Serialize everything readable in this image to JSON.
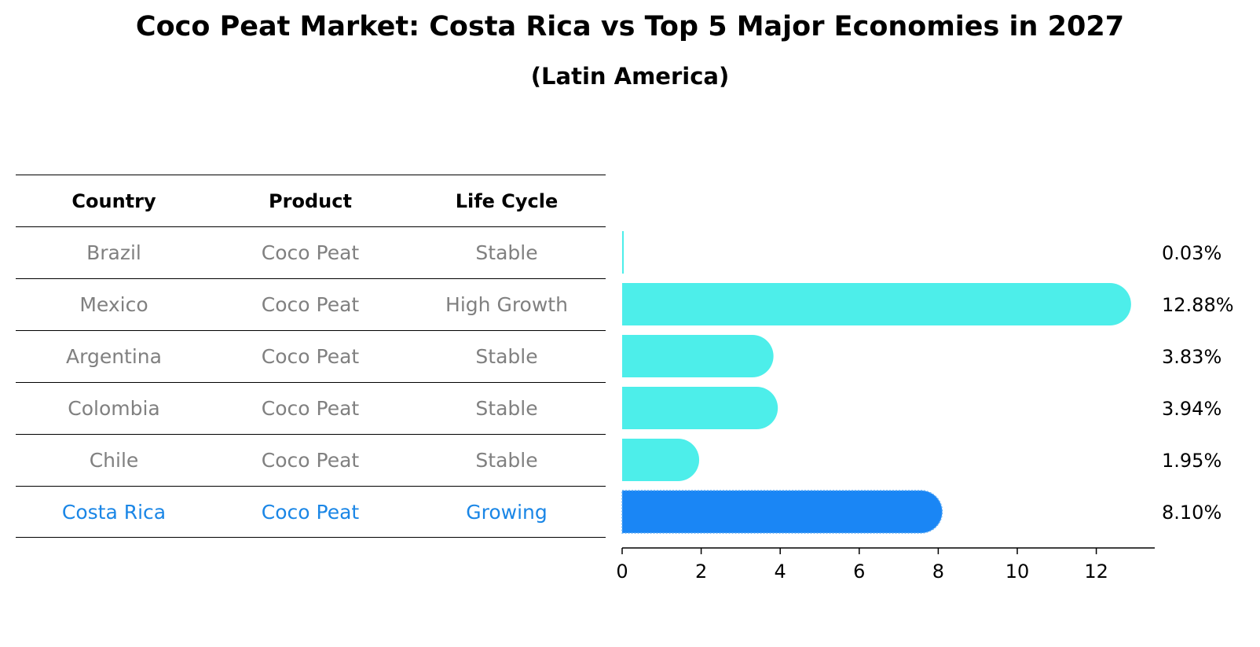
{
  "title": "Coco Peat Market: Costa Rica vs Top 5 Major Economies in 2027",
  "subtitle": "(Latin America)",
  "table": {
    "headers": [
      "Country",
      "Product",
      "Life Cycle"
    ],
    "rows": [
      [
        "Brazil",
        "Coco Peat",
        "Stable"
      ],
      [
        "Mexico",
        "Coco Peat",
        "High Growth"
      ],
      [
        "Argentina",
        "Coco Peat",
        "Stable"
      ],
      [
        "Colombia",
        "Coco Peat",
        "Stable"
      ],
      [
        "Chile",
        "Coco Peat",
        "Stable"
      ],
      [
        "Costa Rica",
        "Coco Peat",
        "Growing"
      ]
    ]
  },
  "chart_data": {
    "type": "bar",
    "orientation": "horizontal",
    "categories": [
      "Brazil",
      "Mexico",
      "Argentina",
      "Colombia",
      "Chile",
      "Costa Rica"
    ],
    "values": [
      0.03,
      12.88,
      3.83,
      3.94,
      1.95,
      8.1
    ],
    "value_labels": [
      "0.03%",
      "12.88%",
      "3.83%",
      "3.94%",
      "1.95%",
      "8.10%"
    ],
    "highlight": "Costa Rica",
    "xlim": [
      0,
      13.5
    ],
    "xticks": [
      0,
      2,
      4,
      6,
      8,
      10,
      12
    ],
    "xtick_labels": [
      "0",
      "2",
      "4",
      "6",
      "8",
      "10",
      "12"
    ],
    "xlabel": "",
    "ylabel": "",
    "colors": {
      "default": "#4deeea",
      "highlight": "#1a86f5",
      "highlight_text": "#1a86e6",
      "muted_text": "#808080"
    }
  }
}
